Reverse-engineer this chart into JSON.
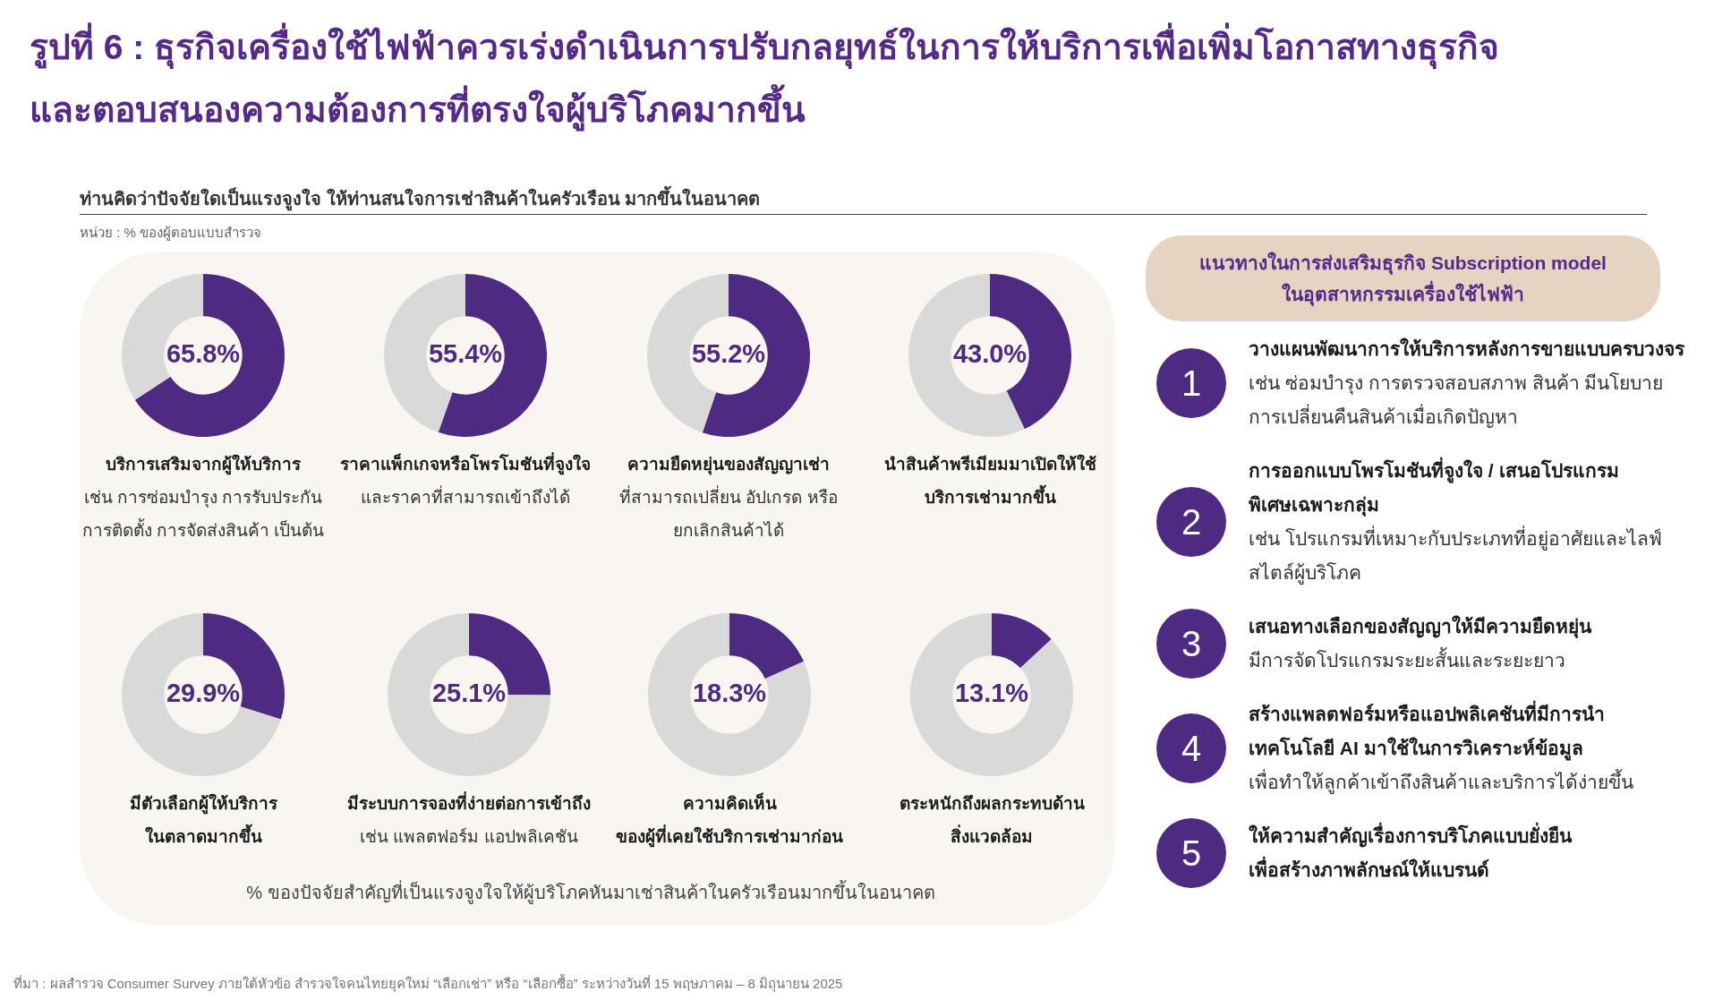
{
  "chart_data": [
    {
      "type": "other",
      "title": "รูปที่ 6 : ธุรกิจเครื่องใช้ไฟฟ้าควรเร่งดำเนินการปรับกลยุทธ์ในการให้บริการเพื่อเพิ่มโอกาสทางธุรกิจและตอบสนองความต้องการที่ตรงใจผู้บริโภคมากขึ้น",
      "subtitle": "ท่านคิดว่าปัจจัยใดเป็นแรงจูงใจ ให้ท่านสนใจการเช่าสินค้าในครัวเรือน มากขึ้นในอนาคต",
      "annotations": [
        "หน่วย : % ของผู้ตอบแบบสำรวจ",
        "% ของปัจจัยสำคัญที่เป็นแรงจูงใจให้ผู้บริโภคหันมาเช่าสินค้าในครัวเรือนมากขึ้นในอนาคต",
        "ที่มา : ผลสำรวจ Consumer Survey ภายใต้หัวข้อ สำรวจใจคนไทยยุคใหม่ “เลือกเช่า” หรือ “เลือกซื้อ” ระหว่างวันที่ 15 พฤษภาคม – 8 มิถุนายน 2025"
      ]
    },
    {
      "type": "donut",
      "title": "บริการเสริมจากผู้ให้บริการ",
      "subtitle": "เช่น การซ่อมบำรุง การรับประกัน การติดตั้ง การจัดส่งสินค้า เป็นต้น",
      "categories": [
        null,
        null
      ],
      "values": [
        65.8,
        34.2
      ],
      "colors": [
        "#4f2a82",
        "#d9d9d9"
      ],
      "value_labels": [
        "65.8%",
        null
      ]
    },
    {
      "type": "donut",
      "title": "ราคาแพ็กเกจหรือโพรโมชันที่จูงใจ",
      "subtitle": "และราคาที่สามารถเข้าถึงได้",
      "categories": [
        null,
        null
      ],
      "values": [
        55.4,
        44.6
      ],
      "colors": [
        "#4f2a82",
        "#d9d9d9"
      ],
      "value_labels": [
        "55.4%",
        null
      ]
    },
    {
      "type": "donut",
      "title": "ความยืดหยุ่นของสัญญาเช่า",
      "subtitle": "ที่สามารถเปลี่ยน อัปเกรด หรือ ยกเลิกสินค้าได้",
      "categories": [
        null,
        null
      ],
      "values": [
        55.2,
        44.8
      ],
      "colors": [
        "#4f2a82",
        "#d9d9d9"
      ],
      "value_labels": [
        "55.2%",
        null
      ]
    },
    {
      "type": "donut",
      "title": "นำสินค้าพรีเมียมมาเปิดให้ใช้บริการเช่ามากขึ้น",
      "categories": [
        null,
        null
      ],
      "values": [
        43.0,
        57.0
      ],
      "colors": [
        "#4f2a82",
        "#d9d9d9"
      ],
      "value_labels": [
        "43.0%",
        null
      ]
    },
    {
      "type": "donut",
      "title": "มีตัวเลือกผู้ให้บริการในตลาดมากขึ้น",
      "categories": [
        null,
        null
      ],
      "values": [
        29.9,
        70.1
      ],
      "colors": [
        "#4f2a82",
        "#d9d9d9"
      ],
      "value_labels": [
        "29.9%",
        null
      ]
    },
    {
      "type": "donut",
      "title": "มีระบบการจองที่ง่ายต่อการเข้าถึง",
      "subtitle": "เช่น แพลตฟอร์ม แอปพลิเคชัน",
      "categories": [
        null,
        null
      ],
      "values": [
        25.1,
        74.9
      ],
      "colors": [
        "#4f2a82",
        "#d9d9d9"
      ],
      "value_labels": [
        "25.1%",
        null
      ]
    },
    {
      "type": "donut",
      "title": "ความคิดเห็นของผู้ที่เคยใช้บริการเช่ามาก่อน",
      "categories": [
        null,
        null
      ],
      "values": [
        18.3,
        81.7
      ],
      "colors": [
        "#4f2a82",
        "#d9d9d9"
      ],
      "value_labels": [
        "18.3%",
        null
      ]
    },
    {
      "type": "donut",
      "title": "ตระหนักถึงผลกระทบด้านสิ่งแวดล้อม",
      "categories": [
        null,
        null
      ],
      "values": [
        13.1,
        86.9
      ],
      "colors": [
        "#4f2a82",
        "#d9d9d9"
      ],
      "value_labels": [
        "13.1%",
        null
      ]
    },
    {
      "type": "other",
      "title": "แนวทางในการส่งเสริมธุรกิจ Subscription model ในอุตสาหกรรมเครื่องใช้ไฟฟ้า"
    },
    {
      "type": "other",
      "categories": [
        "1"
      ],
      "title": "วางแผนพัฒนาการให้บริการหลังการขายแบบครบวงจร",
      "subtitle": "เช่น ซ่อมบำรุง การตรวจสอบสภาพ สินค้า มีนโยบายการเปลี่ยนคืนสินค้าเมื่อเกิดปัญหา"
    },
    {
      "type": "other",
      "categories": [
        "2"
      ],
      "title": "การออกแบบโพรโมชันที่จูงใจ / เสนอโปรแกรมพิเศษเฉพาะกลุ่ม",
      "subtitle": "เช่น โปรแกรมที่เหมาะกับประเภทที่อยู่อาศัยและไลฟ์สไตล์ผู้บริโภค"
    },
    {
      "type": "other",
      "categories": [
        "3"
      ],
      "title": "เสนอทางเลือกของสัญญาให้มีความยืดหยุ่น",
      "subtitle": "มีการจัดโปรแกรมระยะสั้นและระยะยาว"
    },
    {
      "type": "other",
      "categories": [
        "4"
      ],
      "title": "สร้างแพลตฟอร์มหรือแอปพลิเคชันที่มีการนำเทคโนโลยี AI มาใช้ในการวิเคราะห์ข้อมูล",
      "subtitle": "เพื่อทำให้ลูกค้าเข้าถึงสินค้าและบริการได้ง่ายขึ้น"
    },
    {
      "type": "other",
      "categories": [
        "5"
      ],
      "title": "ให้ความสำคัญเรื่องการบริโภคแบบยั่งยืนเพื่อสร้างภาพลักษณ์ให้แบรนด์"
    }
  ]
}
